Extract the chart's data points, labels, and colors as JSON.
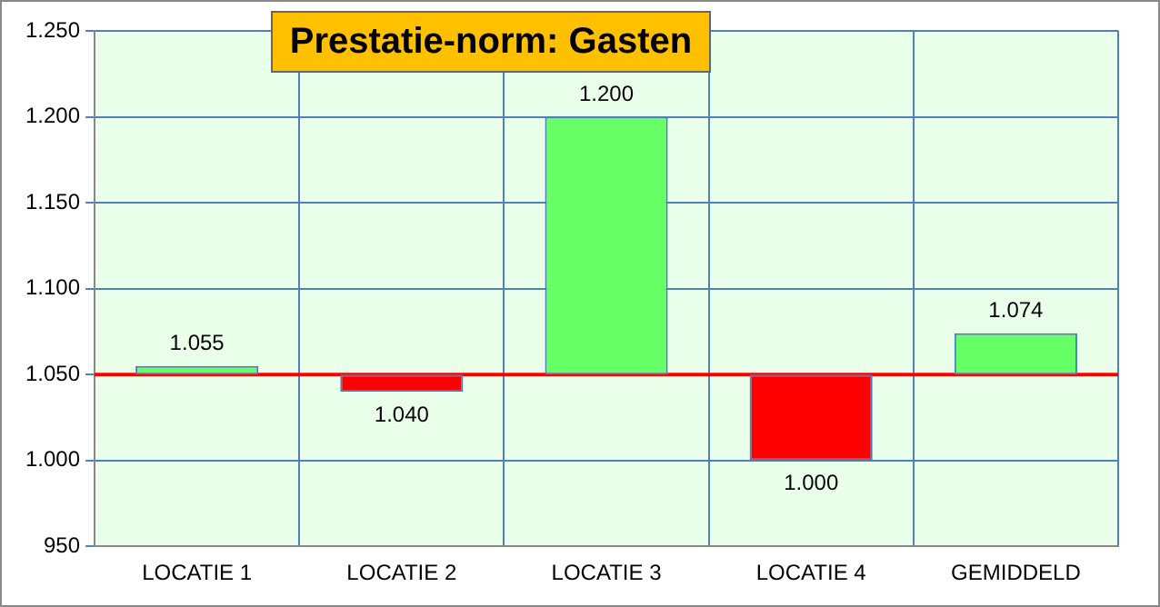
{
  "chart_data": {
    "type": "bar",
    "title": "Prestatie-norm: Gasten",
    "categories": [
      "LOCATIE 1",
      "LOCATIE 2",
      "LOCATIE 3",
      "LOCATIE 4",
      "GEMIDDELD"
    ],
    "base": [
      1050,
      1050,
      1050,
      1050,
      1050
    ],
    "values": [
      5,
      -10,
      150,
      -50,
      24
    ],
    "colors": [
      "#66ff66",
      "#ff0000",
      "#66ff66",
      "#ff0000",
      "#66ff66"
    ],
    "value_labels": [
      "1.055",
      "1.040",
      "1.200",
      "1.000",
      "1.074"
    ],
    "ylim": [
      950,
      1250
    ],
    "yticks": [
      950,
      {
        "value": 1000,
        "label": "1.000"
      },
      {
        "value": 1050,
        "label": "1.050"
      },
      {
        "value": 1100,
        "label": "1.100"
      },
      {
        "value": 1150,
        "label": "1.150"
      },
      {
        "value": 1200,
        "label": "1.200"
      },
      {
        "value": 1250,
        "label": "1.250"
      }
    ],
    "ref_lines": [
      {
        "axis": "y",
        "value": 1050,
        "color": "#ff0000"
      }
    ],
    "grid": true
  }
}
